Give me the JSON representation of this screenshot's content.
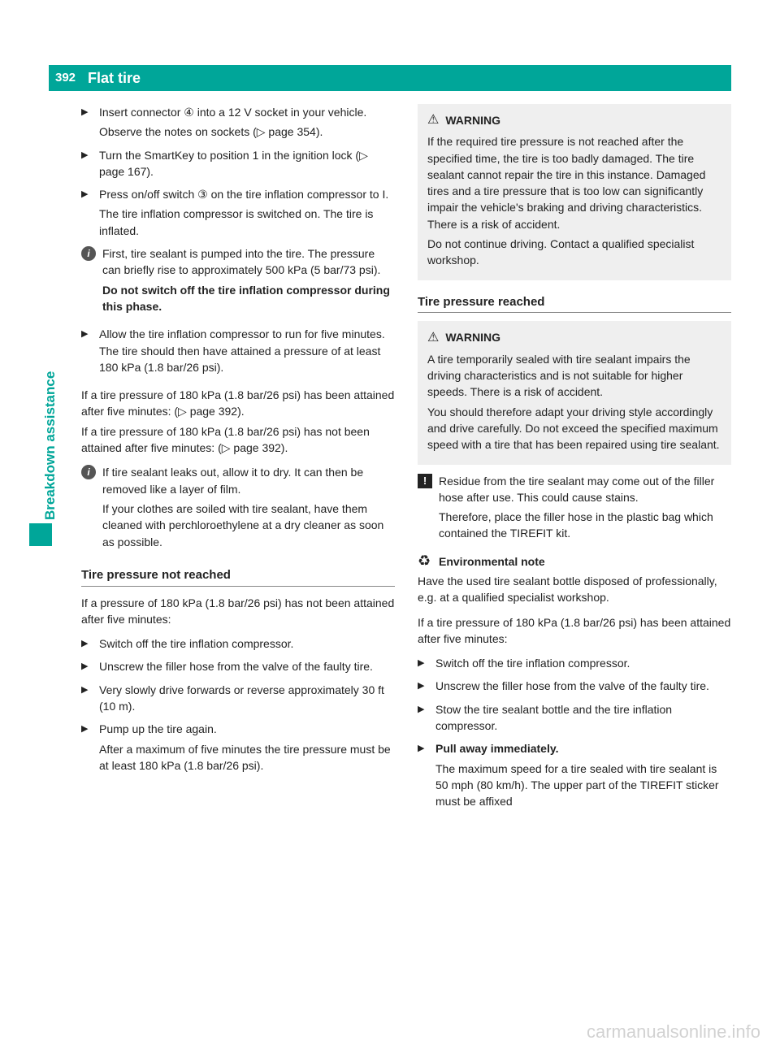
{
  "header": {
    "page_num": "392",
    "title": "Flat tire"
  },
  "sidetab": {
    "label": "Breakdown assistance"
  },
  "colors": {
    "accent": "#00a699",
    "warning_bg": "#efefef",
    "text": "#222222"
  },
  "left": {
    "steps1": [
      {
        "body": "Insert connector ④ into a 12 V socket in your vehicle.",
        "after": "Observe the notes on sockets (▷ page 354)."
      },
      {
        "body": "Turn the SmartKey to position 1 in the ignition lock (▷ page 167)."
      },
      {
        "body": "Press on/off switch ③ on the tire inflation compressor to I.",
        "after": "The tire inflation compressor is switched on. The tire is inflated."
      }
    ],
    "info1": {
      "p1": "First, tire sealant is pumped into the tire. The pressure can briefly rise to approximately 500 kPa (5 bar/73 psi).",
      "p2": "Do not switch off the tire inflation compressor during this phase."
    },
    "steps2": [
      {
        "body": "Allow the tire inflation compressor to run for five minutes. The tire should then have attained a pressure of at least 180 kPa (1.8 bar/26 psi)."
      }
    ],
    "para1": "If a tire pressure of 180 kPa (1.8 bar/26 psi) has been attained after five minutes: (▷ page 392).",
    "para2": "If a tire pressure of 180 kPa (1.8 bar/26 psi) has not been attained after five minutes: (▷ page 392).",
    "info2": {
      "p1": "If tire sealant leaks out, allow it to dry. It can then be removed like a layer of film.",
      "p2": "If your clothes are soiled with tire sealant, have them cleaned with perchloroethylene at a dry cleaner as soon as possible."
    },
    "h3a": "Tire pressure not reached",
    "para3": "If a pressure of 180 kPa (1.8 bar/26 psi) has not been attained after five minutes:",
    "steps3": [
      {
        "body": "Switch off the tire inflation compressor."
      },
      {
        "body": "Unscrew the filler hose from the valve of the faulty tire."
      },
      {
        "body": "Very slowly drive forwards or reverse approximately 30 ft (10 m)."
      },
      {
        "body": "Pump up the tire again.",
        "after": "After a maximum of five minutes the tire pressure must be at least 180 kPa (1.8 bar/26 psi)."
      }
    ]
  },
  "right": {
    "warn1": {
      "label": "WARNING",
      "p1": "If the required tire pressure is not reached after the specified time, the tire is too badly damaged. The tire sealant cannot repair the tire in this instance. Damaged tires and a tire pressure that is too low can significantly impair the vehicle's braking and driving characteristics. There is a risk of accident.",
      "p2": "Do not continue driving. Contact a qualified specialist workshop."
    },
    "h3b": "Tire pressure reached",
    "warn2": {
      "label": "WARNING",
      "p1": "A tire temporarily sealed with tire sealant impairs the driving characteristics and is not suitable for higher speeds. There is a risk of accident.",
      "p2": "You should therefore adapt your driving style accordingly and drive carefully. Do not exceed the specified maximum speed with a tire that has been repaired using tire sealant."
    },
    "note1": {
      "p1": "Residue from the tire sealant may come out of the filler hose after use. This could cause stains.",
      "p2": "Therefore, place the filler hose in the plastic bag which contained the TIREFIT kit."
    },
    "env": {
      "label": "Environmental note",
      "body": "Have the used tire sealant bottle disposed of professionally, e.g. at a qualified specialist workshop."
    },
    "para4": "If a tire pressure of 180 kPa (1.8 bar/26 psi) has been attained after five minutes:",
    "steps4": [
      {
        "body": "Switch off the tire inflation compressor."
      },
      {
        "body": "Unscrew the filler hose from the valve of the faulty tire."
      },
      {
        "body": "Stow the tire sealant bottle and the tire inflation compressor."
      },
      {
        "body": "Pull away immediately.",
        "bold": true,
        "after": "The maximum speed for a tire sealed with tire sealant is 50 mph (80 km/h). The upper part of the TIREFIT sticker must be affixed"
      }
    ]
  },
  "watermark": "carmanualsonline.info"
}
